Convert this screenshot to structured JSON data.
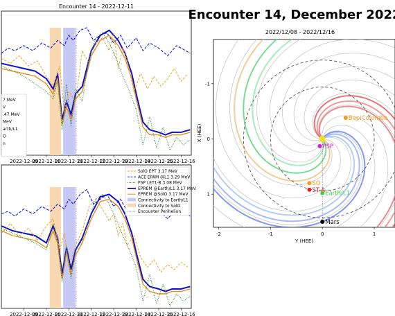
{
  "main_title": "Encounter 14, December 2022",
  "colors": {
    "solo_ept": "#f0a020",
    "ace_epam": "#1a1ae6",
    "psp_let": "#2a8a2a",
    "epremm_earth": "#1010cc",
    "epremm_solo": "#e09020",
    "conn_earth": "#c8c8f5",
    "conn_solo": "#f8d8b0",
    "perihelion": "#8888cc"
  },
  "chart_data": [
    {
      "type": "line",
      "panel": "top-left",
      "title": "Encounter 14 - 2022-12-11",
      "x_ticks": [
        "2022-12-09",
        "2022-12-10",
        "2022-12-11",
        "2022-12-12",
        "2022-12-13",
        "2022-12-14",
        "2022-12-15",
        "2022-12-16"
      ],
      "xlim": [
        "2022-12-08",
        "2022-12-16"
      ],
      "legend_partial": [
        "7 MeV",
        "V",
        ".47 MeV",
        "MeV",
        "arth/L1",
        "O",
        "n"
      ],
      "series": [
        {
          "key": "ace",
          "x": [
            8.0,
            8.3,
            8.6,
            9.0,
            9.4,
            9.8,
            10.2,
            10.5,
            10.8,
            11.0,
            11.2,
            11.5,
            11.8,
            12.1,
            12.4,
            12.7,
            13.0,
            13.3,
            13.6,
            14.0,
            14.3,
            14.6,
            15.0,
            15.4,
            15.8,
            16.2,
            16.4
          ],
          "y": [
            1.0,
            0.8,
            0.9,
            0.7,
            0.9,
            0.6,
            0.8,
            0.5,
            0.7,
            0.3,
            0.5,
            0.1,
            0.0,
            0.5,
            0.3,
            0.2,
            0.6,
            0.3,
            0.8,
            0.4,
            0.9,
            0.6,
            0.8,
            1.1,
            0.7,
            0.9,
            1.0
          ]
        },
        {
          "key": "epremm_earth",
          "x": [
            8.0,
            8.5,
            9.0,
            9.5,
            10.0,
            10.3,
            10.5,
            10.7,
            10.9,
            11.1,
            11.3,
            11.6,
            12.0,
            12.4,
            12.8,
            13.2,
            13.5,
            13.8,
            14.0,
            14.3,
            14.6,
            15.0,
            15.3,
            15.6,
            16.0,
            16.4
          ],
          "y": [
            1.4,
            1.5,
            1.6,
            1.7,
            2.0,
            2.4,
            1.8,
            3.6,
            2.9,
            3.4,
            2.6,
            2.3,
            0.9,
            0.3,
            0.1,
            0.5,
            1.0,
            1.8,
            2.6,
            3.7,
            4.0,
            4.1,
            4.2,
            4.1,
            4.1,
            4.0
          ]
        },
        {
          "key": "epremm_solo",
          "x": [
            8.0,
            8.5,
            9.0,
            9.5,
            10.0,
            10.3,
            10.5,
            10.7,
            10.9,
            11.1,
            11.3,
            11.6,
            12.0,
            12.4,
            12.8,
            13.2,
            13.5,
            13.8,
            14.0,
            14.3,
            14.6,
            15.0,
            15.3,
            15.6,
            16.0,
            16.4
          ],
          "y": [
            1.6,
            1.7,
            1.8,
            1.9,
            2.2,
            2.6,
            2.0,
            3.8,
            3.1,
            3.6,
            2.8,
            2.5,
            1.1,
            0.5,
            0.3,
            0.7,
            1.2,
            2.0,
            2.8,
            3.9,
            4.2,
            4.2,
            4.3,
            4.2,
            4.2,
            4.1
          ]
        },
        {
          "key": "solo_ept",
          "x": [
            8.0,
            8.4,
            8.8,
            9.2,
            9.6,
            10.0,
            10.3,
            10.6,
            10.8,
            11.0,
            11.3,
            11.6,
            11.9,
            12.2,
            12.5,
            12.8,
            13.0,
            13.2,
            13.4,
            13.6,
            13.9,
            14.2,
            14.5,
            14.8,
            15.1,
            15.4,
            15.7,
            16.0,
            16.3
          ],
          "y": [
            1.2,
            1.4,
            1.1,
            1.5,
            1.3,
            1.9,
            2.3,
            1.5,
            3.3,
            2.5,
            2.9,
            0.9,
            1.4,
            0.6,
            0.4,
            0.9,
            0.2,
            1.6,
            0.8,
            1.3,
            2.5,
            1.8,
            2.4,
            1.9,
            2.3,
            2.0,
            1.6,
            2.1,
            1.8
          ]
        },
        {
          "key": "psp_let",
          "x": [
            8.0,
            8.5,
            9.0,
            9.5,
            10.0,
            10.3,
            10.5,
            10.7,
            10.9,
            11.1,
            11.3,
            11.6,
            11.9,
            12.2,
            12.5,
            12.8,
            13.1,
            13.4,
            13.7,
            14.0,
            14.3,
            14.6,
            14.9,
            15.2,
            15.5,
            15.8,
            16.1,
            16.4
          ],
          "y": [
            1.5,
            1.7,
            1.9,
            2.2,
            2.5,
            2.8,
            2.1,
            4.0,
            2.2,
            3.9,
            2.4,
            2.9,
            1.2,
            0.4,
            0.2,
            0.6,
            1.2,
            1.9,
            2.5,
            3.2,
            4.6,
            3.5,
            4.7,
            3.9,
            4.8,
            4.3,
            4.6,
            4.4
          ]
        }
      ]
    },
    {
      "type": "line",
      "panel": "bottom-left",
      "x_ticks": [
        "2022-12-09",
        "2022-12-10",
        "2022-12-11",
        "2022-12-12",
        "2022-12-13",
        "2022-12-14",
        "2022-12-15",
        "2022-12-16"
      ],
      "xlim": [
        "2022-12-08",
        "2022-12-16"
      ],
      "legend": [
        {
          "key": "solo_ept",
          "label": "SolO EPT 3.17 MeV",
          "style": "dashed"
        },
        {
          "key": "ace",
          "label": "ACE EPAM @L1 3.29 MeV",
          "style": "dashed"
        },
        {
          "key": "psp_let",
          "label": "PSP LET1-B 3.08 MeV",
          "style": "dotted"
        },
        {
          "key": "epremm_earth",
          "label": "EPREM @Earth/L1 3.17 MeV",
          "style": "solid"
        },
        {
          "key": "epremm_solo",
          "label": "EPREM @SolO 3.17 MeV",
          "style": "solid"
        },
        {
          "key": "conn_earth",
          "label": "Connectivity to Earth/L1",
          "style": "patch"
        },
        {
          "key": "conn_solo",
          "label": "Connectivity to SolO",
          "style": "patch"
        },
        {
          "key": "perihelion",
          "label": "Encounter Perihelion",
          "style": "dotted"
        }
      ],
      "series": [
        {
          "key": "ace",
          "x": [
            8.0,
            8.3,
            8.6,
            9.0,
            9.4,
            9.8,
            10.2,
            10.5,
            10.8,
            11.0,
            11.2,
            11.5,
            11.8,
            12.1,
            12.4,
            12.7,
            13.0,
            13.3,
            13.6,
            14.0,
            14.3,
            14.6,
            15.0,
            15.4,
            15.8,
            16.2,
            16.4
          ],
          "y": [
            1.1,
            1.0,
            1.2,
            0.9,
            1.1,
            0.8,
            1.0,
            0.7,
            0.9,
            0.5,
            0.7,
            0.3,
            0.1,
            0.7,
            0.5,
            0.3,
            0.8,
            0.5,
            1.0,
            0.6,
            1.1,
            0.8,
            1.0,
            1.3,
            0.9,
            1.1,
            1.2
          ]
        },
        {
          "key": "epremm_earth",
          "x": [
            8.0,
            8.5,
            9.0,
            9.5,
            10.0,
            10.3,
            10.5,
            10.7,
            10.9,
            11.1,
            11.3,
            11.6,
            12.0,
            12.4,
            12.8,
            13.2,
            13.5,
            13.8,
            14.0,
            14.3,
            14.6,
            15.0,
            15.3,
            15.6,
            16.0,
            16.4
          ],
          "y": [
            1.6,
            1.8,
            1.9,
            2.0,
            2.3,
            1.6,
            2.1,
            3.6,
            2.5,
            3.4,
            2.6,
            2.1,
            1.1,
            0.4,
            0.3,
            0.6,
            1.1,
            1.9,
            2.7,
            3.8,
            4.1,
            4.2,
            4.3,
            4.2,
            4.2,
            4.1
          ]
        },
        {
          "key": "epremm_solo",
          "x": [
            8.0,
            8.5,
            9.0,
            9.5,
            10.0,
            10.3,
            10.5,
            10.7,
            10.9,
            11.1,
            11.3,
            11.6,
            12.0,
            12.4,
            12.8,
            13.2,
            13.5,
            13.8,
            14.0,
            14.3,
            14.6,
            15.0,
            15.3,
            15.6,
            16.0,
            16.4
          ],
          "y": [
            1.8,
            2.0,
            2.1,
            2.2,
            2.5,
            1.8,
            2.3,
            3.8,
            2.7,
            3.6,
            2.8,
            2.3,
            1.3,
            0.6,
            0.5,
            0.8,
            1.3,
            2.1,
            2.9,
            4.0,
            4.3,
            4.4,
            4.4,
            4.3,
            4.3,
            4.2
          ]
        },
        {
          "key": "solo_ept",
          "x": [
            8.0,
            8.4,
            8.8,
            9.2,
            9.6,
            10.0,
            10.3,
            10.6,
            10.8,
            11.0,
            11.3,
            11.6,
            11.9,
            12.2,
            12.5,
            12.8,
            13.0,
            13.2,
            13.4,
            13.6,
            13.9,
            14.2,
            14.5,
            14.8,
            15.1,
            15.4,
            15.7,
            16.0,
            16.3
          ],
          "y": [
            1.9,
            1.5,
            2.0,
            1.7,
            2.2,
            1.6,
            1.3,
            2.6,
            1.9,
            3.3,
            2.4,
            1.8,
            0.8,
            0.5,
            0.9,
            1.4,
            1.1,
            2.0,
            1.5,
            2.4,
            2.0,
            2.9,
            3.3,
            3.0,
            3.5,
            3.2,
            3.4,
            3.1,
            3.3
          ]
        },
        {
          "key": "psp_let",
          "x": [
            8.0,
            8.5,
            9.0,
            9.5,
            10.0,
            10.3,
            10.5,
            10.7,
            10.9,
            11.1,
            11.3,
            11.6,
            11.9,
            12.2,
            12.5,
            12.8,
            13.1,
            13.4,
            13.7,
            14.0,
            14.3,
            14.6,
            14.9,
            15.2,
            15.5,
            15.8,
            16.1,
            16.4
          ],
          "y": [
            1.7,
            1.9,
            2.1,
            2.3,
            2.6,
            1.5,
            2.3,
            3.9,
            2.4,
            3.8,
            2.6,
            2.2,
            1.3,
            0.5,
            0.3,
            0.7,
            1.3,
            2.0,
            2.6,
            3.3,
            4.7,
            3.6,
            4.8,
            4.0,
            4.9,
            4.4,
            4.7,
            4.5
          ]
        }
      ]
    },
    {
      "type": "scatter",
      "panel": "right",
      "subtitle": "2022/12/08 - 2022/12/16",
      "xlabel": "Y (HEE)",
      "ylabel": "X (HEE)",
      "xlim": [
        -2.1,
        1.4
      ],
      "ylim": [
        -1.8,
        1.6
      ],
      "x_ticks": [
        -2,
        -1,
        0,
        1
      ],
      "y_ticks": [
        -1,
        0,
        1
      ],
      "points": [
        {
          "label": "PSP",
          "x": -0.05,
          "y": 0.13,
          "color": "#d020d0"
        },
        {
          "label": "SO",
          "x": -0.25,
          "y": 0.8,
          "color": "#f0a020"
        },
        {
          "label": "ST-A",
          "x": -0.25,
          "y": 0.92,
          "color": "#e02020"
        },
        {
          "label": "Earth/L1",
          "x": 0.0,
          "y": 0.98,
          "color": "#40d040"
        },
        {
          "label": "Mars",
          "x": 0.0,
          "y": 1.5,
          "color": "#000000"
        },
        {
          "label": "BepiColombo",
          "x": 0.45,
          "y": -0.38,
          "color": "#f0a020"
        },
        {
          "label": "",
          "x": 0.0,
          "y": 0.0,
          "color": "#f0e020"
        }
      ]
    }
  ]
}
